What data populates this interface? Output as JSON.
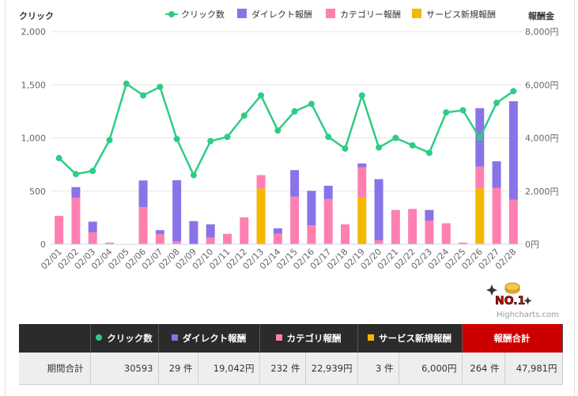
{
  "colors": {
    "clicks": "#2ecc85",
    "direct": "#8a73e8",
    "category": "#ff80b0",
    "service": "#f5b800",
    "axis_text": "#666666",
    "grid": "#e6e6e6",
    "table_header": "#2b2b2b",
    "table_total_header": "#cc0000"
  },
  "chart": {
    "left_axis_title": "クリック",
    "right_axis_title": "報酬金",
    "credit": "Highcharts.com",
    "logo_text": "NO.1"
  },
  "chart_data": {
    "type": "bar",
    "stacked": true,
    "categories": [
      "02/01",
      "02/02",
      "02/03",
      "02/04",
      "02/05",
      "02/06",
      "02/07",
      "02/08",
      "02/09",
      "02/10",
      "02/11",
      "02/12",
      "02/13",
      "02/14",
      "02/15",
      "02/16",
      "02/17",
      "02/18",
      "02/19",
      "02/20",
      "02/21",
      "02/22",
      "02/23",
      "02/24",
      "02/25",
      "02/26",
      "02/27",
      "02/28"
    ],
    "legend_position": "top-right",
    "y_left": {
      "title": "クリック",
      "min": 0,
      "max": 2000,
      "ticks": [
        "0",
        "500",
        "1,000",
        "1,500",
        "2,000"
      ]
    },
    "y_right": {
      "title": "報酬金",
      "min": 0,
      "max": 8000,
      "ticks": [
        "0円",
        "2,000円",
        "4,000円",
        "6,000円",
        "8,000円"
      ]
    },
    "series": [
      {
        "name": "クリック数",
        "type": "line",
        "axis": "left",
        "values": [
          810,
          660,
          690,
          980,
          1510,
          1400,
          1480,
          990,
          650,
          970,
          1010,
          1210,
          1400,
          1070,
          1250,
          1320,
          1010,
          900,
          1400,
          910,
          1000,
          930,
          860,
          1240,
          1260,
          1000,
          1330,
          1440
        ]
      },
      {
        "name": "ダイレクト報酬",
        "type": "bar",
        "axis": "right",
        "values": [
          0,
          400,
          400,
          0,
          0,
          1000,
          150,
          2300,
          870,
          500,
          0,
          0,
          0,
          200,
          1000,
          1300,
          500,
          0,
          150,
          2300,
          0,
          0,
          400,
          0,
          0,
          2200,
          1000,
          3700
        ]
      },
      {
        "name": "カテゴリー報酬",
        "type": "bar",
        "axis": "right",
        "values": [
          1070,
          1750,
          450,
          60,
          0,
          1400,
          380,
          110,
          0,
          250,
          390,
          1010,
          500,
          400,
          1790,
          710,
          1700,
          750,
          1130,
          150,
          1290,
          1330,
          890,
          790,
          60,
          820,
          2120,
          1680
        ]
      },
      {
        "name": "サービス新規報酬",
        "type": "bar",
        "axis": "right",
        "values": [
          0,
          0,
          0,
          0,
          0,
          0,
          0,
          0,
          0,
          0,
          0,
          0,
          2100,
          0,
          0,
          0,
          0,
          0,
          1760,
          0,
          0,
          0,
          0,
          0,
          0,
          2100,
          0,
          0
        ]
      }
    ]
  },
  "table": {
    "headers": {
      "clicks": "クリック数",
      "direct": "ダイレクト報酬",
      "category": "カテゴリ報酬",
      "service": "サービス新規報酬",
      "total": "報酬合計"
    },
    "row": {
      "label": "期間合計",
      "clicks": "30593",
      "direct_count": "29 件",
      "direct_amount": "19,042円",
      "category_count": "232 件",
      "category_amount": "22,939円",
      "service_count": "3 件",
      "service_amount": "6,000円",
      "total_count": "264 件",
      "total_amount": "47,981円"
    }
  }
}
